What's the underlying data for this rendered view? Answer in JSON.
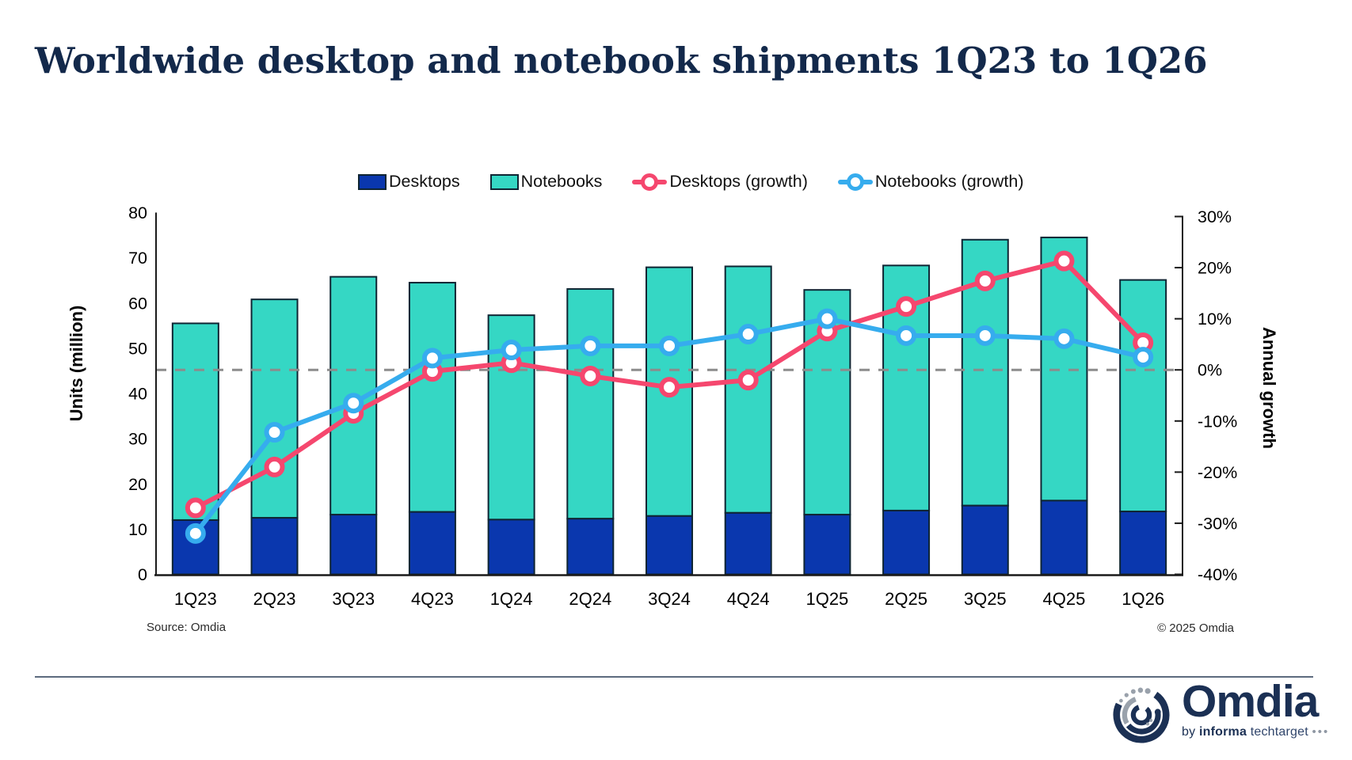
{
  "title": "Worldwide desktop and notebook shipments 1Q23 to 1Q26",
  "legend": [
    {
      "label": "Desktops",
      "glyph": "bar",
      "color": "#0A37AE"
    },
    {
      "label": "Notebooks",
      "glyph": "bar",
      "color": "#35D7C4"
    },
    {
      "label": "Desktops (growth)",
      "glyph": "line",
      "color": "#F5476E"
    },
    {
      "label": "Notebooks (growth)",
      "glyph": "line",
      "color": "#36ACEE"
    }
  ],
  "colors": {
    "desktop_bar": "#0A37AE",
    "notebook_bar": "#35D7C4",
    "bar_outline": "#0F2533",
    "desktop_line": "#F5476E",
    "notebook_line": "#36ACEE",
    "zero_line": "#8C8C8C",
    "axis": "#1a1a1a",
    "title": "#13294B",
    "logo_navy": "#1B3054"
  },
  "chart_data": {
    "type": "bar",
    "subtype": "stacked-bars-with-growth-lines",
    "categories": [
      "1Q23",
      "2Q23",
      "3Q23",
      "4Q23",
      "1Q24",
      "2Q24",
      "3Q24",
      "4Q24",
      "1Q25",
      "2Q25",
      "3Q25",
      "4Q25",
      "1Q26"
    ],
    "series": [
      {
        "name": "Desktops",
        "type": "bar",
        "axis": "left",
        "color": "#0A37AE",
        "values": [
          12.0,
          12.5,
          13.2,
          13.8,
          12.1,
          12.3,
          12.9,
          13.6,
          13.2,
          14.1,
          15.2,
          16.3,
          13.9
        ]
      },
      {
        "name": "Notebooks",
        "type": "bar",
        "axis": "left",
        "color": "#35D7C4",
        "values": [
          43.5,
          48.3,
          52.6,
          50.7,
          45.2,
          50.8,
          55.0,
          54.5,
          49.7,
          54.2,
          58.8,
          58.2,
          51.2
        ]
      },
      {
        "name": "Desktops (growth)",
        "type": "line",
        "axis": "right",
        "color": "#F5476E",
        "values": [
          -27.0,
          -19.0,
          -8.5,
          -0.3,
          1.4,
          -1.2,
          -3.4,
          -2.0,
          7.6,
          12.4,
          17.4,
          21.3,
          5.3
        ]
      },
      {
        "name": "Notebooks (growth)",
        "type": "line",
        "axis": "right",
        "color": "#36ACEE",
        "values": [
          -32.0,
          -12.2,
          -6.5,
          2.3,
          3.9,
          4.7,
          4.7,
          7.0,
          10.0,
          6.7,
          6.7,
          6.1,
          2.5
        ]
      }
    ],
    "left_axis": {
      "label": "Units (million)",
      "min": 0,
      "max": 80,
      "ticks": [
        80,
        70,
        60,
        50,
        40,
        30,
        20,
        10,
        0
      ]
    },
    "right_axis": {
      "label": "Annual growth",
      "min": -40,
      "max": 30,
      "ticks": [
        30,
        20,
        10,
        0,
        -10,
        -20,
        -30,
        -40
      ],
      "suffix": "%"
    },
    "stacked": true,
    "grid": false,
    "zero_reference_line": true,
    "legend_position": "top"
  },
  "footer": {
    "source": "Source: Omdia",
    "copyright": "© 2025 Omdia"
  },
  "logo": {
    "wordmark": "Omdia",
    "tagline_by": "by",
    "tagline_informa": "informa",
    "tagline_techtarget": "techtarget",
    "tagline_dots": "•••"
  }
}
